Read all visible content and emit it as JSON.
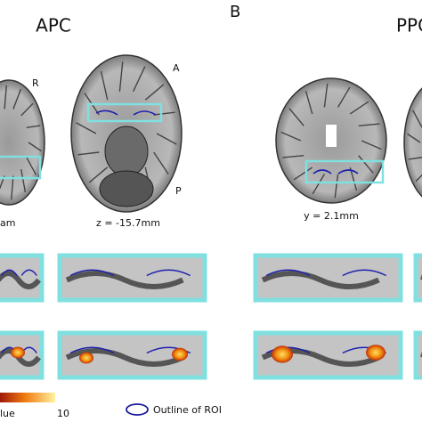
{
  "panels": {
    "A": {
      "title": "APC",
      "orientation_labels": [
        "R",
        "A",
        "P"
      ],
      "slice_labels": [
        "am",
        "z = -15.7mm"
      ]
    },
    "B": {
      "letter": "B",
      "title": "PPC",
      "slice_labels": [
        "y = 2.1mm"
      ]
    }
  },
  "legend": {
    "colorbar_label": "lue",
    "colorbar_max": 10,
    "roi_label": "Outline of ROI"
  }
}
